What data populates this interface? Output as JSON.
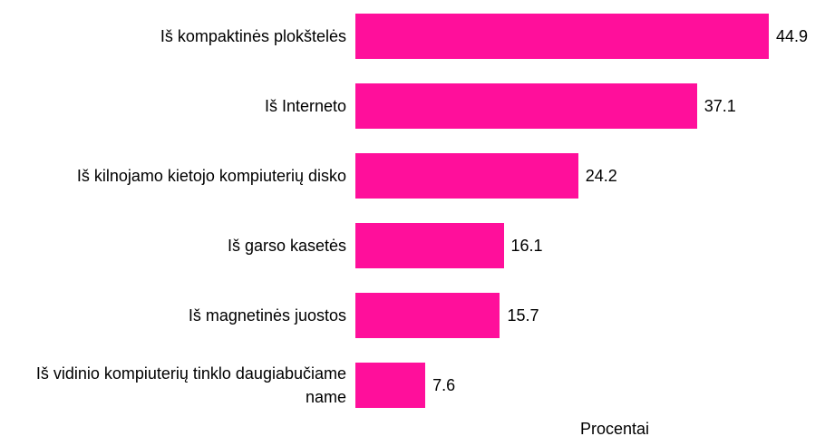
{
  "chart_data": {
    "type": "bar",
    "orientation": "horizontal",
    "categories": [
      "Iš kompaktinės plokštelės",
      "Iš Interneto",
      "Iš kilnojamo kietojo kompiuterių disko",
      "Iš garso kasetės",
      "Iš magnetinės juostos",
      "Iš vidinio kompiuterių tinklo daugiabučiame name"
    ],
    "values": [
      44.9,
      37.1,
      24.2,
      16.1,
      15.7,
      7.6
    ],
    "color": "#ff0f9b",
    "x_label": "Procentai"
  }
}
